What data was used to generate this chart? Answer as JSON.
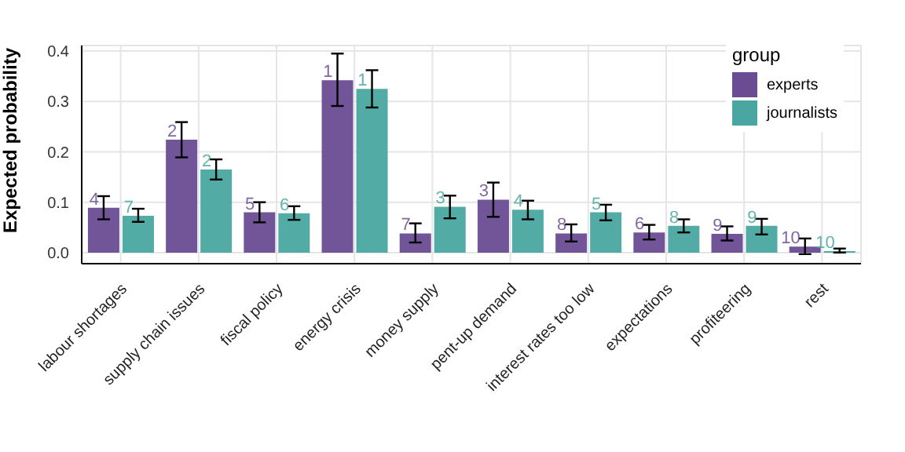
{
  "chart_data": {
    "type": "bar",
    "ylabel": "Expected probability",
    "legend_title": "group",
    "legend": "top right",
    "grid": true,
    "categories": [
      "labour shortages",
      "supply chain issues",
      "fiscal policy",
      "energy crisis",
      "money supply",
      "pent-up demand",
      "interest rates too low",
      "expectations",
      "profiteering",
      "rest"
    ],
    "ylim": [
      -0.022,
      0.411
    ],
    "yticks": [
      {
        "value": 0,
        "label": "0.0"
      },
      0.1,
      0.2,
      0.3,
      0.4
    ],
    "series": [
      {
        "name": "experts",
        "color": "#6a4c93",
        "values": [
          0.089,
          0.224,
          0.08,
          0.342,
          0.038,
          0.105,
          0.038,
          0.04,
          0.037,
          0.012
        ],
        "errors": [
          [
            0.066,
            0.112
          ],
          [
            0.189,
            0.259
          ],
          [
            0.06,
            0.1
          ],
          [
            0.291,
            0.395
          ],
          [
            0.02,
            0.058
          ],
          [
            0.071,
            0.139
          ],
          [
            0.022,
            0.056
          ],
          [
            0.026,
            0.055
          ],
          [
            0.024,
            0.052
          ],
          [
            -0.003,
            0.028
          ]
        ]
      },
      {
        "name": "journalists",
        "color": "#4aa6a0",
        "values": [
          0.073,
          0.165,
          0.078,
          0.325,
          0.091,
          0.085,
          0.08,
          0.053,
          0.053,
          0.003
        ],
        "errors": [
          [
            0.061,
            0.087
          ],
          [
            0.145,
            0.185
          ],
          [
            0.065,
            0.092
          ],
          [
            0.288,
            0.362
          ],
          [
            0.068,
            0.113
          ],
          [
            0.066,
            0.103
          ],
          [
            0.064,
            0.095
          ],
          [
            0.04,
            0.066
          ],
          [
            0.036,
            0.067
          ],
          [
            0.0,
            0.008
          ]
        ]
      }
    ],
    "annotations": [
      {
        "text": "4",
        "x": "labour shortages",
        "y": 0.089
      },
      {
        "text": "7",
        "x": "labour shortages",
        "y": 0.073
      },
      {
        "text": "2",
        "x": "supply chain issues",
        "y": 0.224
      },
      {
        "text": "2",
        "x": "supply chain issues",
        "y": 0.165
      },
      {
        "text": "5",
        "x": "fiscal policy",
        "y": 0.08
      },
      {
        "text": "6",
        "x": "fiscal policy",
        "y": 0.078
      },
      {
        "text": "1",
        "x": "energy crisis",
        "y": 0.342
      },
      {
        "text": "1",
        "x": "energy crisis",
        "y": 0.325
      },
      {
        "text": "7",
        "x": "money supply",
        "y": 0.038
      },
      {
        "text": "3",
        "x": "money supply",
        "y": 0.091
      },
      {
        "text": "3",
        "x": "pent-up demand",
        "y": 0.105
      },
      {
        "text": "4",
        "x": "pent-up demand",
        "y": 0.085
      },
      {
        "text": "8",
        "x": "interest rates too low",
        "y": 0.038
      },
      {
        "text": "5",
        "x": "interest rates too low",
        "y": 0.08
      },
      {
        "text": "6",
        "x": "expectations",
        "y": 0.04
      },
      {
        "text": "8",
        "x": "expectations",
        "y": 0.053
      },
      {
        "text": "9",
        "x": "profiteering",
        "y": 0.037
      },
      {
        "text": "9",
        "x": "profiteering",
        "y": 0.053
      },
      {
        "text": "10",
        "x": "rest",
        "y": 0.012
      },
      {
        "text": "10",
        "x": "rest",
        "y": 0.003
      }
    ]
  }
}
